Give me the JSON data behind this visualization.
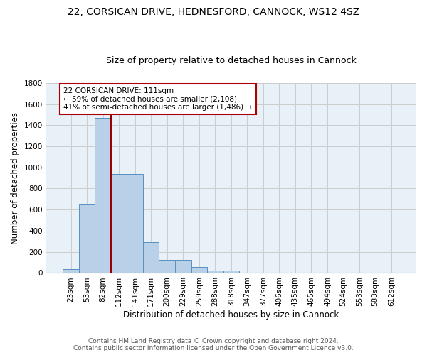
{
  "title1": "22, CORSICAN DRIVE, HEDNESFORD, CANNOCK, WS12 4SZ",
  "title2": "Size of property relative to detached houses in Cannock",
  "xlabel": "Distribution of detached houses by size in Cannock",
  "ylabel": "Number of detached properties",
  "categories": [
    "23sqm",
    "53sqm",
    "82sqm",
    "112sqm",
    "141sqm",
    "171sqm",
    "200sqm",
    "229sqm",
    "259sqm",
    "288sqm",
    "318sqm",
    "347sqm",
    "377sqm",
    "406sqm",
    "435sqm",
    "465sqm",
    "494sqm",
    "524sqm",
    "553sqm",
    "583sqm",
    "612sqm"
  ],
  "values": [
    35,
    650,
    1470,
    935,
    935,
    290,
    125,
    125,
    60,
    25,
    20,
    0,
    0,
    0,
    0,
    0,
    0,
    0,
    0,
    0,
    0
  ],
  "bar_color": "#b8d0e8",
  "bar_edge_color": "#5a8fc0",
  "vline_color": "#990000",
  "annotation_line1": "22 CORSICAN DRIVE: 111sqm",
  "annotation_line2": "← 59% of detached houses are smaller (2,108)",
  "annotation_line3": "41% of semi-detached houses are larger (1,486) →",
  "annotation_box_color": "#aa0000",
  "annotation_bg_color": "#ffffff",
  "ylim": [
    0,
    1800
  ],
  "yticks": [
    0,
    200,
    400,
    600,
    800,
    1000,
    1200,
    1400,
    1600,
    1800
  ],
  "grid_color": "#cccccc",
  "background_color": "#e8f0f8",
  "footer_text": "Contains HM Land Registry data © Crown copyright and database right 2024.\nContains public sector information licensed under the Open Government Licence v3.0.",
  "title1_fontsize": 10,
  "title2_fontsize": 9,
  "xlabel_fontsize": 8.5,
  "ylabel_fontsize": 8.5,
  "tick_fontsize": 7.5,
  "annotation_fontsize": 7.5,
  "footer_fontsize": 6.5
}
